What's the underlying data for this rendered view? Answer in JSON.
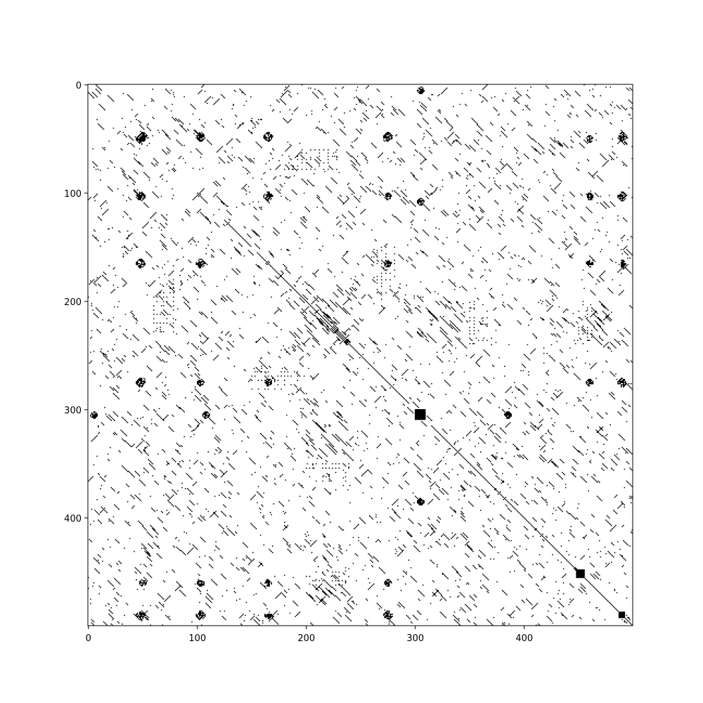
{
  "chart_data": {
    "type": "heatmap",
    "subtype": "binary-matrix-spy",
    "title": "",
    "xlabel": "",
    "ylabel": "",
    "size": 500,
    "xlim": [
      0,
      500
    ],
    "ylim": [
      500,
      0
    ],
    "x_ticks": [
      0,
      100,
      200,
      300,
      400
    ],
    "y_ticks": [
      0,
      100,
      200,
      300,
      400
    ],
    "x_tick_labels": [
      "0",
      "100",
      "200",
      "300",
      "400"
    ],
    "y_tick_labels": [
      "0",
      "100",
      "200",
      "300",
      "400"
    ],
    "grid": false,
    "colors": {
      "filled": "#000000",
      "empty": "#ffffff"
    },
    "main_diagonal_segments": [
      [
        100,
        110
      ],
      [
        125,
        150
      ],
      [
        155,
        295
      ],
      [
        315,
        500
      ]
    ],
    "dense_blocks": [
      {
        "r0": 300,
        "r1": 310,
        "c0": 300,
        "c1": 310
      },
      {
        "r0": 487,
        "r1": 493,
        "c0": 487,
        "c1": 493
      },
      {
        "r0": 448,
        "r1": 456,
        "c0": 448,
        "c1": 456
      }
    ],
    "symmetric_clusters": [
      {
        "i": 48,
        "j": 50,
        "w": 4
      },
      {
        "i": 48,
        "j": 103,
        "w": 4
      },
      {
        "i": 48,
        "j": 165,
        "w": 4
      },
      {
        "i": 48,
        "j": 275,
        "w": 4
      },
      {
        "i": 48,
        "j": 490,
        "w": 4
      },
      {
        "i": 103,
        "j": 165,
        "w": 4
      },
      {
        "i": 103,
        "j": 275,
        "w": 3
      },
      {
        "i": 103,
        "j": 490,
        "w": 4
      },
      {
        "i": 165,
        "j": 275,
        "w": 3
      },
      {
        "i": 165,
        "j": 490,
        "w": 3
      },
      {
        "i": 275,
        "j": 490,
        "w": 4
      },
      {
        "i": 5,
        "j": 305,
        "w": 3
      },
      {
        "i": 108,
        "j": 305,
        "w": 3
      },
      {
        "i": 305,
        "j": 385,
        "w": 3
      },
      {
        "i": 385,
        "j": 305,
        "w": 3
      },
      {
        "i": 50,
        "j": 460,
        "w": 3
      },
      {
        "i": 103,
        "j": 460,
        "w": 3
      },
      {
        "i": 165,
        "j": 460,
        "w": 3
      },
      {
        "i": 275,
        "j": 460,
        "w": 3
      }
    ],
    "pattern_regions": [
      {
        "r0": 195,
        "r1": 235,
        "c0": 195,
        "c1": 235,
        "kind": "diag-dense"
      },
      {
        "r0": 150,
        "r1": 200,
        "c0": 265,
        "c1": 285,
        "kind": "dots"
      },
      {
        "r0": 200,
        "r1": 240,
        "c0": 350,
        "c1": 370,
        "kind": "dots"
      },
      {
        "r0": 200,
        "r1": 240,
        "c0": 450,
        "c1": 465,
        "kind": "dots"
      },
      {
        "r0": 310,
        "r1": 340,
        "c0": 200,
        "c1": 235,
        "kind": "diag-dense"
      },
      {
        "r0": 460,
        "r1": 475,
        "c0": 200,
        "c1": 235,
        "kind": "diag-dense"
      },
      {
        "r0": 60,
        "r1": 80,
        "c0": 180,
        "c1": 230,
        "kind": "dots"
      }
    ],
    "random_density": 0.0028,
    "short_diagonal_count": 900,
    "seed": 42
  }
}
